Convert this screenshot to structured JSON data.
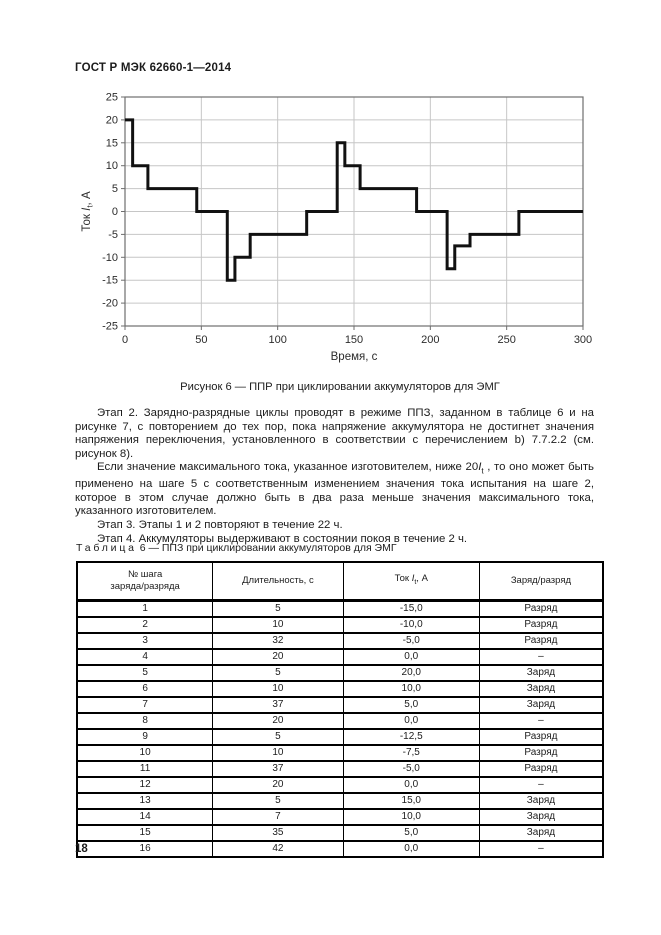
{
  "page": {
    "standard_code": "ГОСТ Р МЭК 62660-1—2014",
    "page_number": "18"
  },
  "figure": {
    "caption": "Рисунок 6 — ППР при циклировании аккумуляторов для ЭМГ"
  },
  "chart_data": {
    "type": "line",
    "subtype": "step",
    "title": "",
    "xlabel": "Время, с",
    "ylabel_parts": {
      "prefix": "Ток ",
      "symbol": "I",
      "subscript": "t",
      "suffix": ", А"
    },
    "xlim": [
      0,
      300
    ],
    "ylim": [
      -25,
      25
    ],
    "xticks": [
      0,
      50,
      100,
      150,
      200,
      250,
      300
    ],
    "yticks": [
      25,
      20,
      15,
      10,
      5,
      0,
      -5,
      -10,
      -15,
      -20,
      -25
    ],
    "grid": true,
    "legend": null,
    "line_color": "#111111",
    "steps": [
      {
        "duration": 5,
        "current": 20
      },
      {
        "duration": 10,
        "current": 10
      },
      {
        "duration": 32,
        "current": 5
      },
      {
        "duration": 20,
        "current": 0
      },
      {
        "duration": 5,
        "current": -15
      },
      {
        "duration": 10,
        "current": -10
      },
      {
        "duration": 37,
        "current": -5
      },
      {
        "duration": 20,
        "current": 0
      },
      {
        "duration": 5,
        "current": 15
      },
      {
        "duration": 10,
        "current": 10
      },
      {
        "duration": 37,
        "current": 5
      },
      {
        "duration": 20,
        "current": 0
      },
      {
        "duration": 5,
        "current": -12.5
      },
      {
        "duration": 10,
        "current": -7.5
      },
      {
        "duration": 32,
        "current": -5
      },
      {
        "duration": 42,
        "current": 0
      }
    ]
  },
  "text": {
    "p1": "Этап 2. Зарядно-разрядные циклы проводят в режиме ППЗ, заданном в таблице 6 и на рисунке 7, с повторением до тех пор, пока напряжение аккумулятора не достигнет значения напряжения переключения, установленного в соответствии с перечислением b) 7.7.2.2 (см. рисунок 8).",
    "p2_before": "Если значение максимального тока, указанное изготовителем, ниже 20",
    "p2_symbol": "I",
    "p2_sub": "t",
    "p2_after": " , то оно может быть применено на шаге 5 с соответственным изменением значения тока испытания на шаге 2, которое в этом случае должно быть в два раза меньше значения максимального тока, указанного изготовителем.",
    "p3": "Этап 3. Этапы 1 и 2 повторяют в течение 22 ч.",
    "p4": "Этап 4. Аккумуляторы выдерживают в состоянии покоя в течение 2 ч."
  },
  "table": {
    "title_word": "Таблица",
    "title_rest": " 6 — ППЗ при циклировании аккумуляторов для ЭМГ",
    "col1_line1": "№ шага",
    "col1_line2": "заряда/разряда",
    "col2": "Длительность, с",
    "col3_prefix": "Ток ",
    "col3_symbol": "I",
    "col3_sub": "t",
    "col3_suffix": ", А",
    "col4": "Заряд/разряд",
    "rows": [
      [
        "1",
        "5",
        "-15,0",
        "Разряд"
      ],
      [
        "2",
        "10",
        "-10,0",
        "Разряд"
      ],
      [
        "3",
        "32",
        "-5,0",
        "Разряд"
      ],
      [
        "4",
        "20",
        "0,0",
        "–"
      ],
      [
        "5",
        "5",
        "20,0",
        "Заряд"
      ],
      [
        "6",
        "10",
        "10,0",
        "Заряд"
      ],
      [
        "7",
        "37",
        "5,0",
        "Заряд"
      ],
      [
        "8",
        "20",
        "0,0",
        "–"
      ],
      [
        "9",
        "5",
        "-12,5",
        "Разряд"
      ],
      [
        "10",
        "10",
        "-7,5",
        "Разряд"
      ],
      [
        "11",
        "37",
        "-5,0",
        "Разряд"
      ],
      [
        "12",
        "20",
        "0,0",
        "–"
      ],
      [
        "13",
        "5",
        "15,0",
        "Заряд"
      ],
      [
        "14",
        "7",
        "10,0",
        "Заряд"
      ],
      [
        "15",
        "35",
        "5,0",
        "Заряд"
      ],
      [
        "16",
        "42",
        "0,0",
        "–"
      ]
    ]
  }
}
